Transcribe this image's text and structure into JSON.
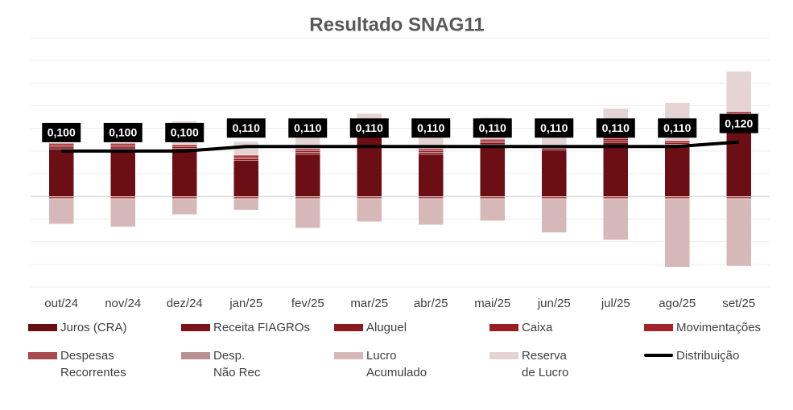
{
  "chart_data": {
    "type": "bar",
    "title": "Resultado SNAG11",
    "categories": [
      "out/24",
      "nov/24",
      "dez/24",
      "jan/25",
      "fev/25",
      "mar/25",
      "abr/25",
      "mai/25",
      "jun/25",
      "jul/25",
      "ago/25",
      "set/25"
    ],
    "ylim": [
      -0.2,
      0.35
    ],
    "yticks": [
      -0.2,
      -0.15,
      -0.1,
      -0.05,
      0,
      0.05,
      0.1,
      0.15,
      0.2,
      0.25,
      0.3,
      0.35
    ],
    "grid": true,
    "series": [
      {
        "name": "Juros (CRA)",
        "color": "#6b0f14",
        "values": [
          0.105,
          0.105,
          0.102,
          0.079,
          0.093,
          0.146,
          0.093,
          0.114,
          0.102,
          0.119,
          0.111,
          0.175
        ]
      },
      {
        "name": "Receita FIAGROs",
        "color": "#7d1419",
        "values": [
          0.004,
          0.004,
          0.004,
          0.004,
          0.004,
          0.004,
          0.004,
          0.004,
          0.004,
          0.004,
          0.004,
          0.004
        ]
      },
      {
        "name": "Aluguel",
        "color": "#8b1a1f",
        "values": [
          0,
          0,
          0,
          0,
          0,
          0,
          0,
          0,
          0,
          0,
          0,
          0
        ]
      },
      {
        "name": "Caixa",
        "color": "#9b1c22",
        "values": [
          0.004,
          0.004,
          0.004,
          0.004,
          0.004,
          0.004,
          0.004,
          0.004,
          0.004,
          0.004,
          0.004,
          0.004
        ]
      },
      {
        "name": "Movimentações",
        "color": "#a3252b",
        "values": [
          0.004,
          0.004,
          0.004,
          0.004,
          0.004,
          0.004,
          0.004,
          0.004,
          0.004,
          0.004,
          0.004,
          0.004
        ]
      },
      {
        "name": "Despesas Recorrentes",
        "color": "#a84a4e",
        "values": [
          -0.005,
          -0.005,
          -0.005,
          -0.005,
          -0.005,
          -0.005,
          -0.005,
          -0.005,
          -0.005,
          -0.005,
          -0.005,
          -0.005
        ]
      },
      {
        "name": "Desp. Não Rec",
        "color": "#b89090",
        "values": [
          0,
          0,
          0,
          0,
          0,
          0,
          0,
          0,
          0,
          0,
          0,
          0
        ]
      },
      {
        "name": "Lucro Acumulado",
        "color": "#d6b8b9",
        "values": [
          -0.056,
          -0.062,
          -0.035,
          -0.025,
          -0.065,
          -0.051,
          -0.058,
          -0.049,
          -0.075,
          -0.091,
          -0.151,
          -0.149
        ]
      },
      {
        "name": "Reserva de Lucro",
        "color": "#e6d3d3",
        "values": [
          0,
          0,
          0.052,
          0.03,
          0.026,
          0.025,
          0.026,
          0.049,
          0.018,
          0.063,
          0.084,
          0.089
        ]
      },
      {
        "name": "Distribuição",
        "type": "line",
        "color": "#000000",
        "values": [
          0.1,
          0.1,
          0.1,
          0.11,
          0.11,
          0.11,
          0.11,
          0.11,
          0.11,
          0.11,
          0.11,
          0.12
        ],
        "value_labels": [
          "0,100",
          "0,100",
          "0,100",
          "0,110",
          "0,110",
          "0,110",
          "0,110",
          "0,110",
          "0,110",
          "0,110",
          "0,110",
          "0,120"
        ]
      }
    ]
  }
}
